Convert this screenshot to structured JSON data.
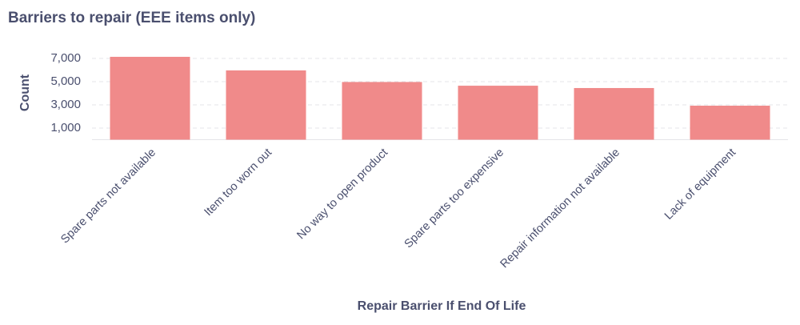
{
  "chart_data": {
    "type": "bar",
    "title": "Barriers to repair (EEE items only)",
    "x_label": "Repair Barrier If End Of Life",
    "y_label": "Count",
    "categories": [
      "Spare parts not available",
      "Item too worn out",
      "No way to open product",
      "Spare parts too expensive",
      "Repair information not available",
      "Lack of equipment"
    ],
    "values": [
      7140,
      5970,
      4970,
      4650,
      4450,
      2930
    ],
    "color": "#f08a8a",
    "ylim": [
      0,
      8200
    ],
    "yticks": [
      {
        "value": 1000,
        "label": "1,000"
      },
      {
        "value": 3000,
        "label": "3,000"
      },
      {
        "value": 5000,
        "label": "5,000"
      },
      {
        "value": 7000,
        "label": "7,000"
      }
    ],
    "grid": true
  }
}
